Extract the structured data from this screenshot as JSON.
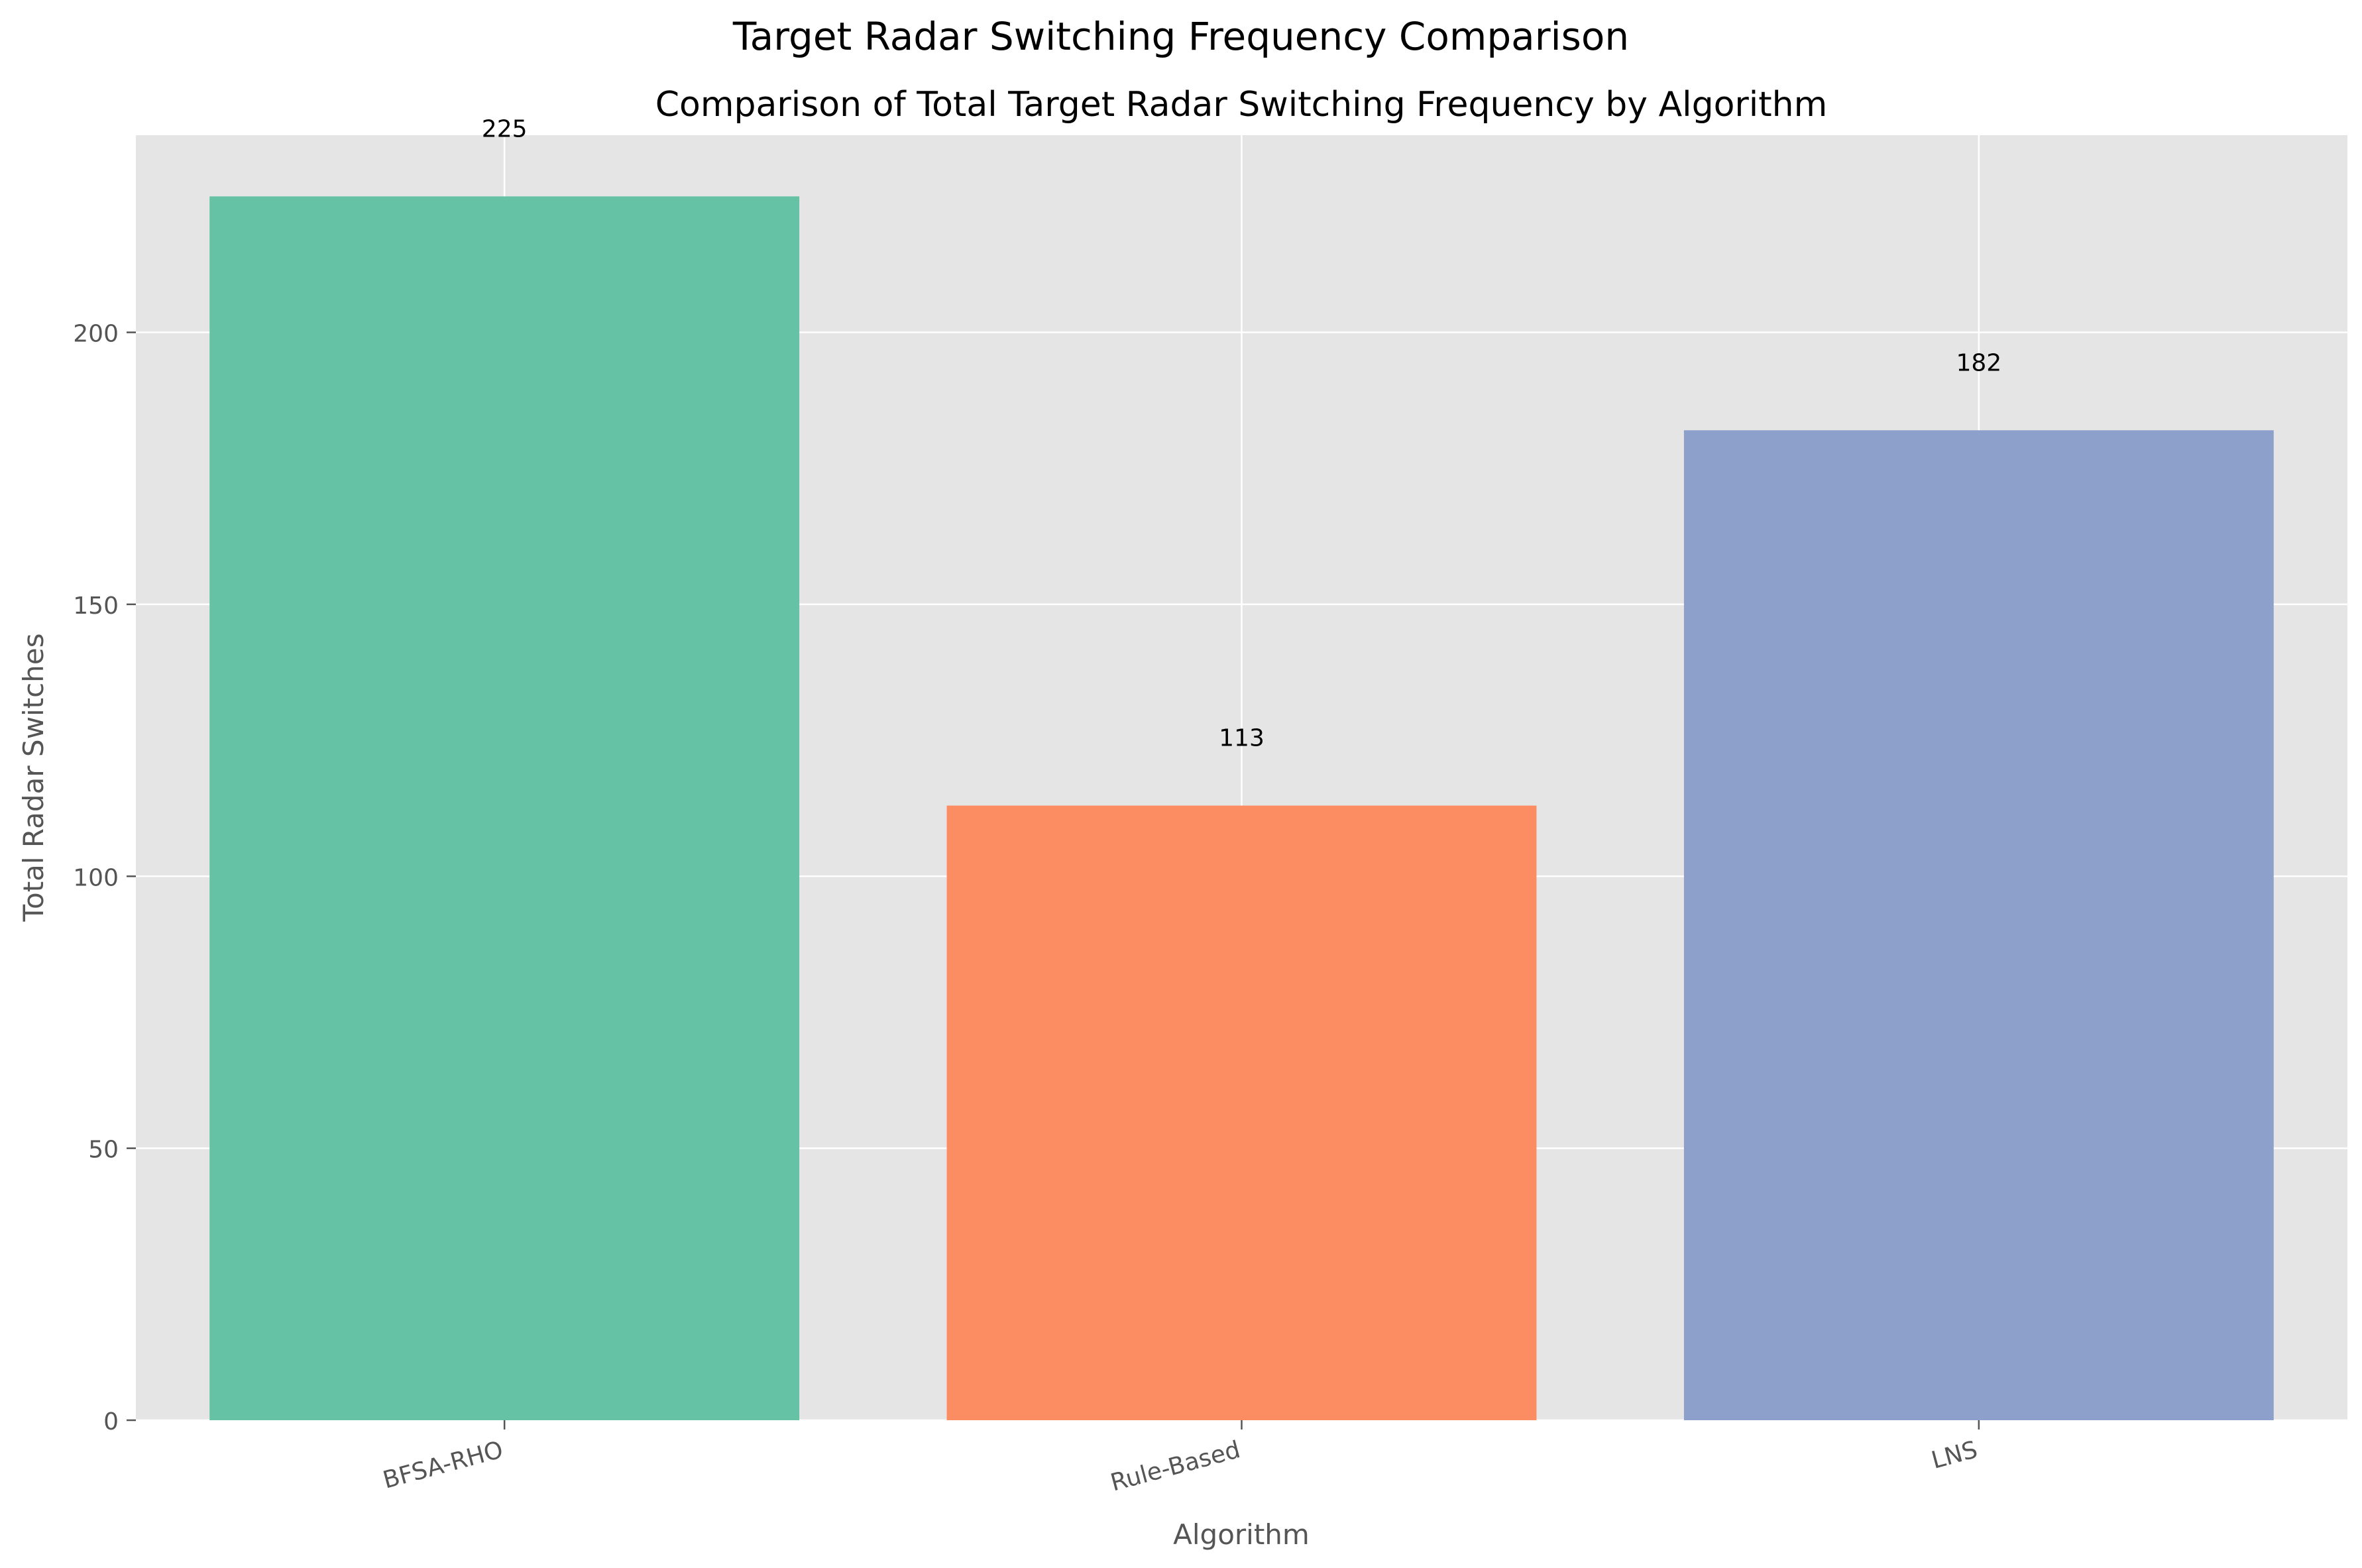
{
  "figure": {
    "suptitle": "Target Radar Switching Frequency Comparison"
  },
  "chart_data": {
    "type": "bar",
    "title": "Comparison of Total Target Radar Switching Frequency by Algorithm",
    "xlabel": "Algorithm",
    "ylabel": "Total Radar Switches",
    "categories": [
      "BFSA-RHO",
      "Rule-Based",
      "LNS"
    ],
    "values": [
      225,
      113,
      182
    ],
    "data_labels": [
      "225",
      "113",
      "182"
    ],
    "colors": [
      "#66c2a5",
      "#fc8d62",
      "#8da0cb"
    ],
    "ylim": [
      0,
      236.25
    ],
    "yticks": [
      0,
      50,
      100,
      150,
      200
    ],
    "grid": true,
    "legend": "none",
    "background": "#e5e5e5",
    "grid_color": "#ffffff",
    "tick_label_color": "#555555"
  }
}
